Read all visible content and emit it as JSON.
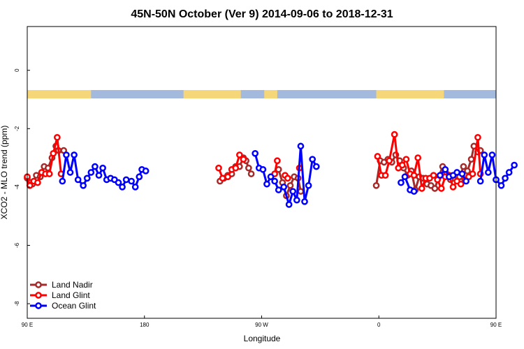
{
  "chart_data": {
    "type": "line",
    "title": "45N-50N October (Ver 9)   2014-09-06 to 2018-12-31",
    "xlabel": "Longitude",
    "ylabel": "XCO2 - MLO trend (ppm)",
    "xlim": [
      90,
      450
    ],
    "ylim": [
      -8.5,
      1.5
    ],
    "x_ticks": [
      {
        "value": 90,
        "label": "90 E"
      },
      {
        "value": 180,
        "label": "180"
      },
      {
        "value": 270,
        "label": "90 W"
      },
      {
        "value": 360,
        "label": "0"
      },
      {
        "value": 450,
        "label": "90 E"
      },
      {
        "value": 540,
        "label": "180"
      }
    ],
    "y_ticks": [
      {
        "value": 0,
        "label": "0"
      },
      {
        "value": -2,
        "label": "-2"
      },
      {
        "value": -4,
        "label": "-4"
      },
      {
        "value": -6,
        "label": "-6"
      },
      {
        "value": -8,
        "label": "-8"
      }
    ],
    "land_mask": {
      "land_color": "#f5d679",
      "ocean_color": "#a3b9dd",
      "land_segments": [
        [
          90,
          139
        ],
        [
          210,
          254
        ],
        [
          272,
          282
        ],
        [
          358,
          410
        ],
        [
          450,
          499
        ]
      ]
    },
    "legend_position": "bottom-left",
    "series": [
      {
        "name": "Land Nadir",
        "color": "#a52a2a",
        "segments": [
          [
            [
              90,
              -3.7
            ],
            [
              92,
              -3.85
            ],
            [
              94,
              -3.9
            ],
            [
              97,
              -3.6
            ],
            [
              100,
              -3.65
            ],
            [
              103,
              -3.3
            ],
            [
              106,
              -3.35
            ],
            [
              109,
              -3.0
            ],
            [
              112,
              -2.6
            ],
            [
              114,
              -2.75
            ],
            [
              118,
              -2.75
            ]
          ],
          [
            [
              238,
              -3.8
            ],
            [
              241,
              -3.7
            ],
            [
              244,
              -3.6
            ],
            [
              247,
              -3.55
            ],
            [
              250,
              -3.3
            ],
            [
              253,
              -3.3
            ],
            [
              256,
              -3.0
            ],
            [
              258,
              -3.1
            ],
            [
              260,
              -3.35
            ],
            [
              262,
              -3.55
            ]
          ],
          [
            [
              283,
              -3.4
            ],
            [
              286,
              -3.85
            ],
            [
              289,
              -4.3
            ],
            [
              292,
              -3.95
            ],
            [
              295,
              -3.65
            ],
            [
              298,
              -3.7
            ],
            [
              300,
              -4.15
            ]
          ],
          [
            [
              358,
              -3.95
            ],
            [
              361,
              -3.1
            ],
            [
              364,
              -3.15
            ],
            [
              367,
              -3.05
            ],
            [
              370,
              -3.15
            ],
            [
              373,
              -2.9
            ],
            [
              376,
              -3.1
            ],
            [
              379,
              -3.35
            ],
            [
              382,
              -3.6
            ],
            [
              385,
              -3.45
            ],
            [
              388,
              -4.1
            ],
            [
              391,
              -3.65
            ],
            [
              394,
              -3.7
            ],
            [
              397,
              -3.9
            ],
            [
              400,
              -3.95
            ],
            [
              403,
              -4.05
            ],
            [
              406,
              -3.65
            ],
            [
              409,
              -3.3
            ],
            [
              412,
              -3.55
            ],
            [
              415,
              -3.75
            ],
            [
              419,
              -3.6
            ],
            [
              422,
              -3.65
            ],
            [
              425,
              -3.3
            ],
            [
              428,
              -3.45
            ],
            [
              431,
              -3.05
            ],
            [
              433,
              -2.6
            ],
            [
              436,
              -2.8
            ],
            [
              438,
              -2.75
            ]
          ]
        ]
      },
      {
        "name": "Land Glint",
        "color": "#ff0000",
        "segments": [
          [
            [
              90,
              -3.65
            ],
            [
              92,
              -3.95
            ],
            [
              95,
              -3.8
            ],
            [
              98,
              -3.85
            ],
            [
              101,
              -3.5
            ],
            [
              104,
              -3.55
            ],
            [
              107,
              -3.55
            ],
            [
              110,
              -2.85
            ],
            [
              113,
              -2.3
            ],
            [
              116,
              -3.55
            ]
          ],
          [
            [
              237,
              -3.35
            ],
            [
              240,
              -3.7
            ],
            [
              244,
              -3.65
            ],
            [
              247,
              -3.4
            ],
            [
              250,
              -3.35
            ],
            [
              253,
              -2.9
            ],
            [
              256,
              -3.05
            ]
          ],
          [
            [
              280,
              -3.55
            ],
            [
              282,
              -3.1
            ]
          ],
          [
            [
              288,
              -3.6
            ],
            [
              290,
              -3.7
            ]
          ],
          [
            [
              299,
              -3.35
            ]
          ],
          [
            [
              359,
              -2.95
            ],
            [
              362,
              -3.6
            ],
            [
              365,
              -3.6
            ],
            [
              368,
              -3.1
            ],
            [
              372,
              -2.2
            ],
            [
              375,
              -3.35
            ],
            [
              378,
              -3.25
            ],
            [
              381,
              -3.05
            ],
            [
              384,
              -3.55
            ],
            [
              387,
              -3.6
            ],
            [
              390,
              -3.0
            ],
            [
              393,
              -4.05
            ],
            [
              396,
              -3.7
            ],
            [
              399,
              -3.7
            ],
            [
              402,
              -3.6
            ],
            [
              405,
              -3.75
            ],
            [
              408,
              -4.05
            ],
            [
              411,
              -3.65
            ],
            [
              414,
              -3.6
            ],
            [
              417,
              -4.0
            ],
            [
              420,
              -3.8
            ],
            [
              423,
              -3.9
            ],
            [
              426,
              -3.75
            ],
            [
              429,
              -3.65
            ],
            [
              432,
              -3.55
            ],
            [
              436,
              -2.3
            ],
            [
              438,
              -3.55
            ]
          ]
        ]
      },
      {
        "name": "Ocean Glint",
        "color": "#0000ff",
        "segments": [
          [
            [
              117,
              -3.8
            ],
            [
              120,
              -2.9
            ],
            [
              123,
              -3.5
            ],
            [
              126,
              -2.9
            ],
            [
              129,
              -3.75
            ],
            [
              133,
              -3.95
            ],
            [
              136,
              -3.7
            ],
            [
              139,
              -3.5
            ],
            [
              142,
              -3.3
            ],
            [
              145,
              -3.6
            ],
            [
              148,
              -3.35
            ],
            [
              151,
              -3.75
            ],
            [
              154,
              -3.7
            ],
            [
              157,
              -3.75
            ],
            [
              160,
              -3.85
            ],
            [
              163,
              -4.0
            ],
            [
              166,
              -3.75
            ],
            [
              170,
              -3.8
            ],
            [
              173,
              -4.0
            ],
            [
              176,
              -3.65
            ],
            [
              178,
              -3.4
            ],
            [
              181,
              -3.45
            ]
          ],
          [
            [
              265,
              -2.85
            ],
            [
              268,
              -3.35
            ],
            [
              271,
              -3.4
            ],
            [
              274,
              -3.9
            ],
            [
              277,
              -3.65
            ],
            [
              280,
              -3.8
            ],
            [
              283,
              -4.1
            ],
            [
              287,
              -4.0
            ],
            [
              291,
              -4.6
            ],
            [
              294,
              -4.15
            ],
            [
              297,
              -4.45
            ],
            [
              300,
              -2.6
            ],
            [
              303,
              -4.5
            ],
            [
              306,
              -3.95
            ],
            [
              309,
              -3.05
            ],
            [
              312,
              -3.3
            ]
          ],
          [
            [
              377,
              -3.85
            ],
            [
              380,
              -3.65
            ],
            [
              384,
              -4.1
            ],
            [
              387,
              -4.15
            ]
          ],
          [
            [
              407,
              -3.6
            ],
            [
              411,
              -3.4
            ],
            [
              414,
              -3.65
            ],
            [
              417,
              -3.6
            ],
            [
              420,
              -3.5
            ],
            [
              424,
              -3.55
            ],
            [
              427,
              -3.8
            ]
          ],
          [
            [
              438,
              -3.8
            ],
            [
              441,
              -2.9
            ],
            [
              444,
              -3.5
            ],
            [
              447,
              -2.9
            ],
            [
              450,
              -3.75
            ]
          ],
          [
            [
              450,
              -3.75
            ],
            [
              454,
              -3.95
            ],
            [
              457,
              -3.7
            ],
            [
              460,
              -3.5
            ],
            [
              464,
              -3.25
            ]
          ]
        ]
      }
    ]
  }
}
